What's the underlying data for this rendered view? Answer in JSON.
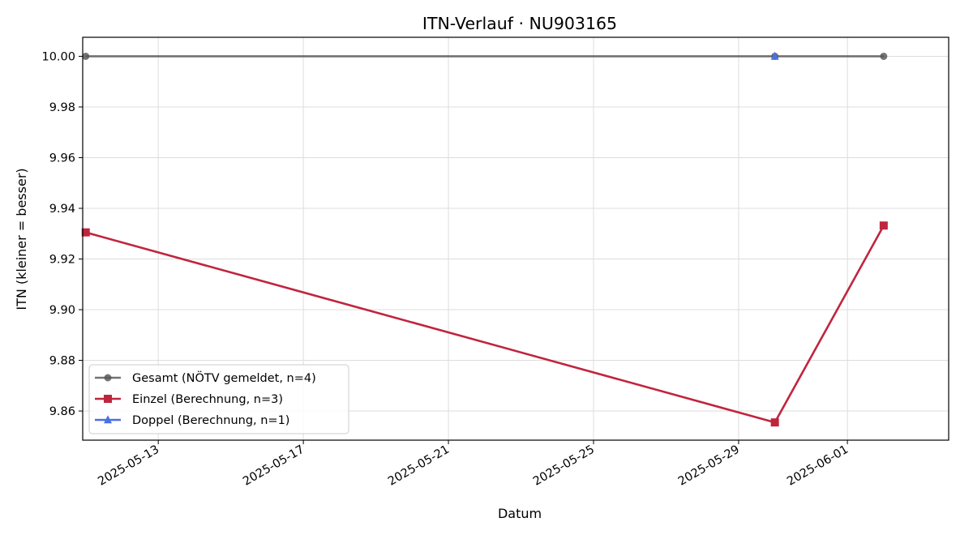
{
  "chart_data": {
    "type": "line",
    "title": "ITN-Verlauf · NU903165",
    "xlabel": "Datum",
    "ylabel": "ITN  (kleiner = besser)",
    "xlim": [
      "2025-05-10T22:00",
      "2025-06-03T19:00"
    ],
    "ylim": [
      9.8485,
      10.0075
    ],
    "x_ticks": [
      "2025-05-13",
      "2025-05-17",
      "2025-05-21",
      "2025-05-25",
      "2025-05-29",
      "2025-06-01"
    ],
    "y_ticks": [
      9.86,
      9.88,
      9.9,
      9.92,
      9.94,
      9.96,
      9.98,
      10.0
    ],
    "y_tick_labels": [
      "9.86",
      "9.88",
      "9.90",
      "9.92",
      "9.94",
      "9.96",
      "9.98",
      "10.00"
    ],
    "grid": true,
    "legend": {
      "position": "lower-left"
    },
    "series": [
      {
        "name": "Gesamt (NÖTV gemeldet, n=4)",
        "color": "#555555",
        "marker": "circle",
        "points": [
          {
            "x": "2025-05-11",
            "y": 10.0
          },
          {
            "x": "2025-05-30",
            "y": 10.0
          },
          {
            "x": "2025-06-02",
            "y": 10.0
          }
        ]
      },
      {
        "name": "Einzel (Berechnung, n=3)",
        "color": "#c0253e",
        "marker": "square",
        "points": [
          {
            "x": "2025-05-11",
            "y": 9.9305
          },
          {
            "x": "2025-05-30",
            "y": 9.8555
          },
          {
            "x": "2025-06-02",
            "y": 9.9332
          }
        ]
      },
      {
        "name": "Doppel (Berechnung, n=1)",
        "color": "#4a6fe3",
        "marker": "triangle",
        "points": [
          {
            "x": "2025-05-30",
            "y": 10.0
          }
        ]
      }
    ]
  }
}
